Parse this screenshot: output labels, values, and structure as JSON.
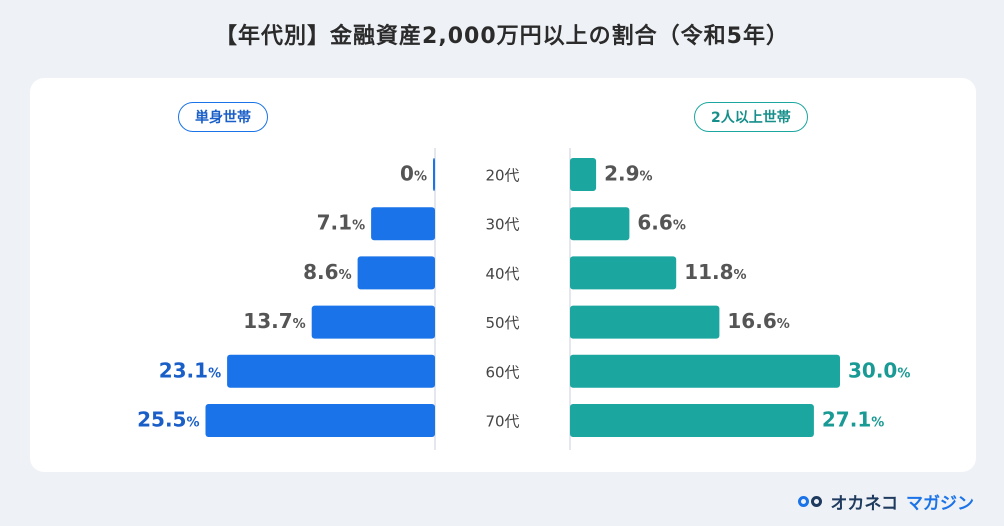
{
  "title": "【年代別】金融資産2,000万円以上の割合（令和5年）",
  "legend": {
    "left": "単身世帯",
    "right": "2人以上世帯"
  },
  "logo": {
    "main": "オカネコ",
    "sub": "マガジン"
  },
  "colors": {
    "left_bar": "#1a73e8",
    "right_bar": "#1ba6a0",
    "left_highlight_text": "#1a5fc8",
    "right_highlight_text": "#1a9a94",
    "default_text": "#555555"
  },
  "chart_data": {
    "type": "bar",
    "subtype": "back-to-back horizontal bar",
    "title": "【年代別】金融資産2,000万円以上の割合（令和5年）",
    "categories": [
      "20代",
      "30代",
      "40代",
      "50代",
      "60代",
      "70代"
    ],
    "series": [
      {
        "name": "単身世帯",
        "values": [
          0,
          7.1,
          8.6,
          13.7,
          23.1,
          25.5
        ],
        "labels": [
          "0",
          "7.1",
          "8.6",
          "13.7",
          "23.1",
          "25.5"
        ],
        "direction": "left"
      },
      {
        "name": "2人以上世帯",
        "values": [
          2.9,
          6.6,
          11.8,
          16.6,
          30.0,
          27.1
        ],
        "labels": [
          "2.9",
          "6.6",
          "11.8",
          "16.6",
          "30.0",
          "27.1"
        ],
        "direction": "right"
      }
    ],
    "unit": "%",
    "highlighted_rows": [
      4,
      5
    ],
    "xlim": [
      0,
      30
    ]
  }
}
